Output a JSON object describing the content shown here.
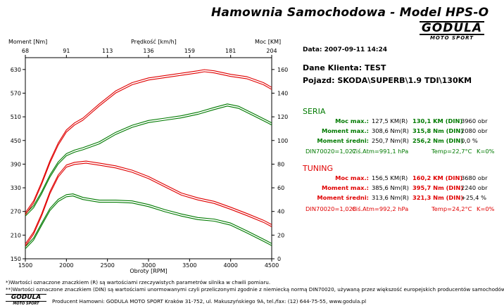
{
  "header": {
    "title": "Hamownia Samochodowa   -   Model HPS-O",
    "logo_top": "GODULA",
    "logo_bottom": "MOTO SPORT"
  },
  "info": {
    "date_line": "Data: 2007-09-11  14:24",
    "client": "Dane Klienta: TEST",
    "vehicle": "Pojazd: SKODA\\SUPERB\\1.9 TDI\\130KM"
  },
  "seria": {
    "heading": "SERIA",
    "rows": [
      {
        "label": "Moc max.:",
        "a": "127,5 KM(R)",
        "b": "130,1 KM (DIN)",
        "c": "3960 obr"
      },
      {
        "label": "Moment max.:",
        "a": "308,6 Nm(R)",
        "b": "315,8 Nm (DIN)",
        "c": "2080 obr"
      },
      {
        "label": "Moment średni:",
        "a": "250,7 Nm(R)",
        "b": "256,2 Nm (DIN)",
        "c": "0,0 %"
      }
    ],
    "din": "DIN70020=1,027",
    "atm": "Ciś.Atm=991,1 hPa",
    "temp": "Temp=22,7°C",
    "k": "K=0%"
  },
  "tuning": {
    "heading": "TUNING",
    "rows": [
      {
        "label": "Moc max.:",
        "a": "156,5 KM(R)",
        "b": "160,2 KM (DIN)",
        "c": "3680 obr"
      },
      {
        "label": "Moment max.:",
        "a": "385,6 Nm(R)",
        "b": "395,7 Nm (DIN)",
        "c": "2240 obr"
      },
      {
        "label": "Moment średni:",
        "a": "313,6 Nm(R)",
        "b": "321,3 Nm (DIN)",
        "c": "+25,4 %"
      }
    ],
    "din": "DIN70020=1,028",
    "atm": "Ciś.Atm=992,2 hPa",
    "temp": "Temp=24,2°C",
    "k": "K=0%"
  },
  "footer": {
    "note1": "*)Wartości oznaczone znaczkiem (R) są wartościami rzeczywistych parametrów silnika w chwili pomiaru.",
    "note2": "**)Wartości oznaczone znaczkiem (DIN) są wartościami unormowanymi czyli przeliczonymi zgodnie z niemiecką normą DIN70020, używaną przez większość europejskich producentów samochodów.",
    "producer": "Producent Hamowni: GODULA MOTO SPORT Kraków 31-752, ul. Makuszyńskiego 9A, tel./fax: (12) 644-75-55, www.godula.pl",
    "logo_top": "GODULA",
    "logo_bottom": "MOTO SPORT"
  },
  "colors": {
    "seria": "#007a00",
    "tuning": "#e00000"
  },
  "chart_data": {
    "type": "line",
    "xlabel": "Obroty [RPM]",
    "ylabel_left": "Moment [Nm]",
    "ylabel_right": "Moc [KM]",
    "top_axis_label": "Prędkość [km/h]",
    "x_range": [
      1500,
      4500
    ],
    "x_ticks": [
      1500,
      2000,
      2500,
      3000,
      3500,
      4000,
      4500
    ],
    "y_left_range": [
      150,
      660
    ],
    "y_left_ticks": [
      150,
      210,
      270,
      330,
      390,
      450,
      510,
      570,
      630
    ],
    "y_right_range": [
      0,
      170
    ],
    "y_right_ticks": [
      0,
      20,
      40,
      60,
      80,
      100,
      120,
      140,
      160
    ],
    "top_ticks": [
      "68",
      "91",
      "113",
      "136",
      "159",
      "181",
      "204"
    ],
    "grid": false,
    "series": [
      {
        "name": "SERIA",
        "quantity": "moment",
        "axis": "left",
        "x": [
          1500,
          1600,
          1700,
          1800,
          1900,
          2000,
          2080,
          2200,
          2400,
          2600,
          2800,
          3000,
          3200,
          3400,
          3600,
          3800,
          4000,
          4200,
          4400,
          4500
        ],
        "y": [
          178,
          200,
          238,
          275,
          298,
          310,
          312,
          303,
          296,
          296,
          294,
          285,
          272,
          261,
          252,
          248,
          238,
          218,
          197,
          186
        ]
      },
      {
        "name": "SERIA",
        "quantity": "moc",
        "axis": "right",
        "x": [
          1500,
          1600,
          1700,
          1800,
          1900,
          2000,
          2100,
          2200,
          2400,
          2600,
          2800,
          3000,
          3200,
          3400,
          3600,
          3800,
          3960,
          4100,
          4300,
          4500
        ],
        "y": [
          37,
          44,
          56,
          70,
          81,
          88,
          91,
          93,
          98,
          106,
          112,
          116,
          118,
          120,
          123,
          127,
          130,
          128,
          121,
          114
        ]
      },
      {
        "name": "TUNING",
        "quantity": "moment",
        "axis": "left",
        "x": [
          1500,
          1600,
          1700,
          1800,
          1900,
          2000,
          2100,
          2240,
          2400,
          2600,
          2800,
          3000,
          3200,
          3400,
          3600,
          3800,
          4000,
          4200,
          4400,
          4500
        ],
        "y": [
          185,
          215,
          262,
          318,
          360,
          385,
          392,
          395,
          390,
          383,
          372,
          356,
          335,
          314,
          302,
          293,
          278,
          262,
          245,
          234
        ]
      },
      {
        "name": "TUNING",
        "quantity": "moc",
        "axis": "right",
        "x": [
          1500,
          1600,
          1700,
          1800,
          1900,
          2000,
          2100,
          2200,
          2400,
          2600,
          2800,
          3000,
          3200,
          3400,
          3600,
          3680,
          3800,
          4000,
          4200,
          4400,
          4500
        ],
        "y": [
          38,
          48,
          64,
          82,
          97,
          108,
          114,
          118,
          130,
          141,
          148,
          152,
          154,
          156,
          158,
          159,
          158,
          155,
          153,
          148,
          144
        ]
      }
    ]
  }
}
